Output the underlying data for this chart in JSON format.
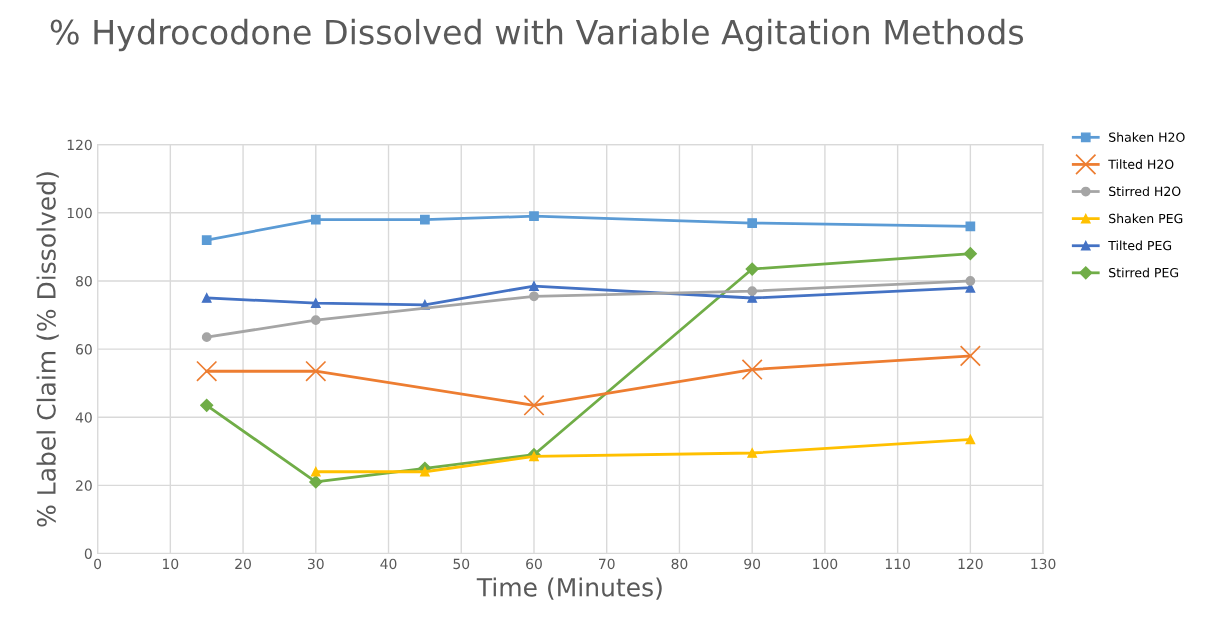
{
  "chart_data": {
    "type": "line",
    "title": "% Hydrocodone Dissolved with Variable Agitation Methods",
    "xlabel": "Time (Minutes)",
    "ylabel": "% Label Claim (% Dissolved)",
    "xlim": [
      0,
      130
    ],
    "xticks": [
      0,
      10,
      20,
      30,
      40,
      50,
      60,
      70,
      80,
      90,
      100,
      110,
      120,
      130
    ],
    "ylim": [
      0,
      120
    ],
    "yticks": [
      0,
      20,
      40,
      60,
      80,
      100,
      120
    ],
    "grid": true,
    "legend": "right",
    "series": [
      {
        "name": "Shaken H2O",
        "color": "#5b9bd5",
        "marker": "square",
        "x": [
          15,
          30,
          45,
          60,
          90,
          120
        ],
        "values": [
          92,
          98,
          98,
          99,
          97,
          96
        ]
      },
      {
        "name": "Tilted H2O",
        "color": "#ed7d31",
        "marker": "cross",
        "x": [
          15,
          30,
          60,
          90,
          120
        ],
        "values": [
          53.5,
          53.5,
          43.5,
          54,
          58
        ]
      },
      {
        "name": "Stirred H2O",
        "color": "#a5a5a5",
        "marker": "circle",
        "x": [
          15,
          30,
          60,
          90,
          120
        ],
        "values": [
          63.5,
          68.5,
          75.5,
          77,
          80
        ]
      },
      {
        "name": "Shaken PEG",
        "color": "#ffc000",
        "marker": "triangle",
        "x": [
          30,
          45,
          60,
          90,
          120
        ],
        "values": [
          24,
          24,
          28.5,
          29.5,
          33.5
        ]
      },
      {
        "name": "Tilted PEG",
        "color": "#4472c4",
        "marker": "triangle",
        "x": [
          15,
          30,
          45,
          60,
          90,
          120
        ],
        "values": [
          75,
          73.5,
          73,
          78.5,
          75,
          78
        ]
      },
      {
        "name": "Stirred PEG",
        "color": "#70ad47",
        "marker": "diamond",
        "x": [
          15,
          30,
          45,
          60,
          90,
          120
        ],
        "values": [
          43.5,
          21,
          25,
          29,
          83.5,
          88
        ]
      }
    ]
  }
}
